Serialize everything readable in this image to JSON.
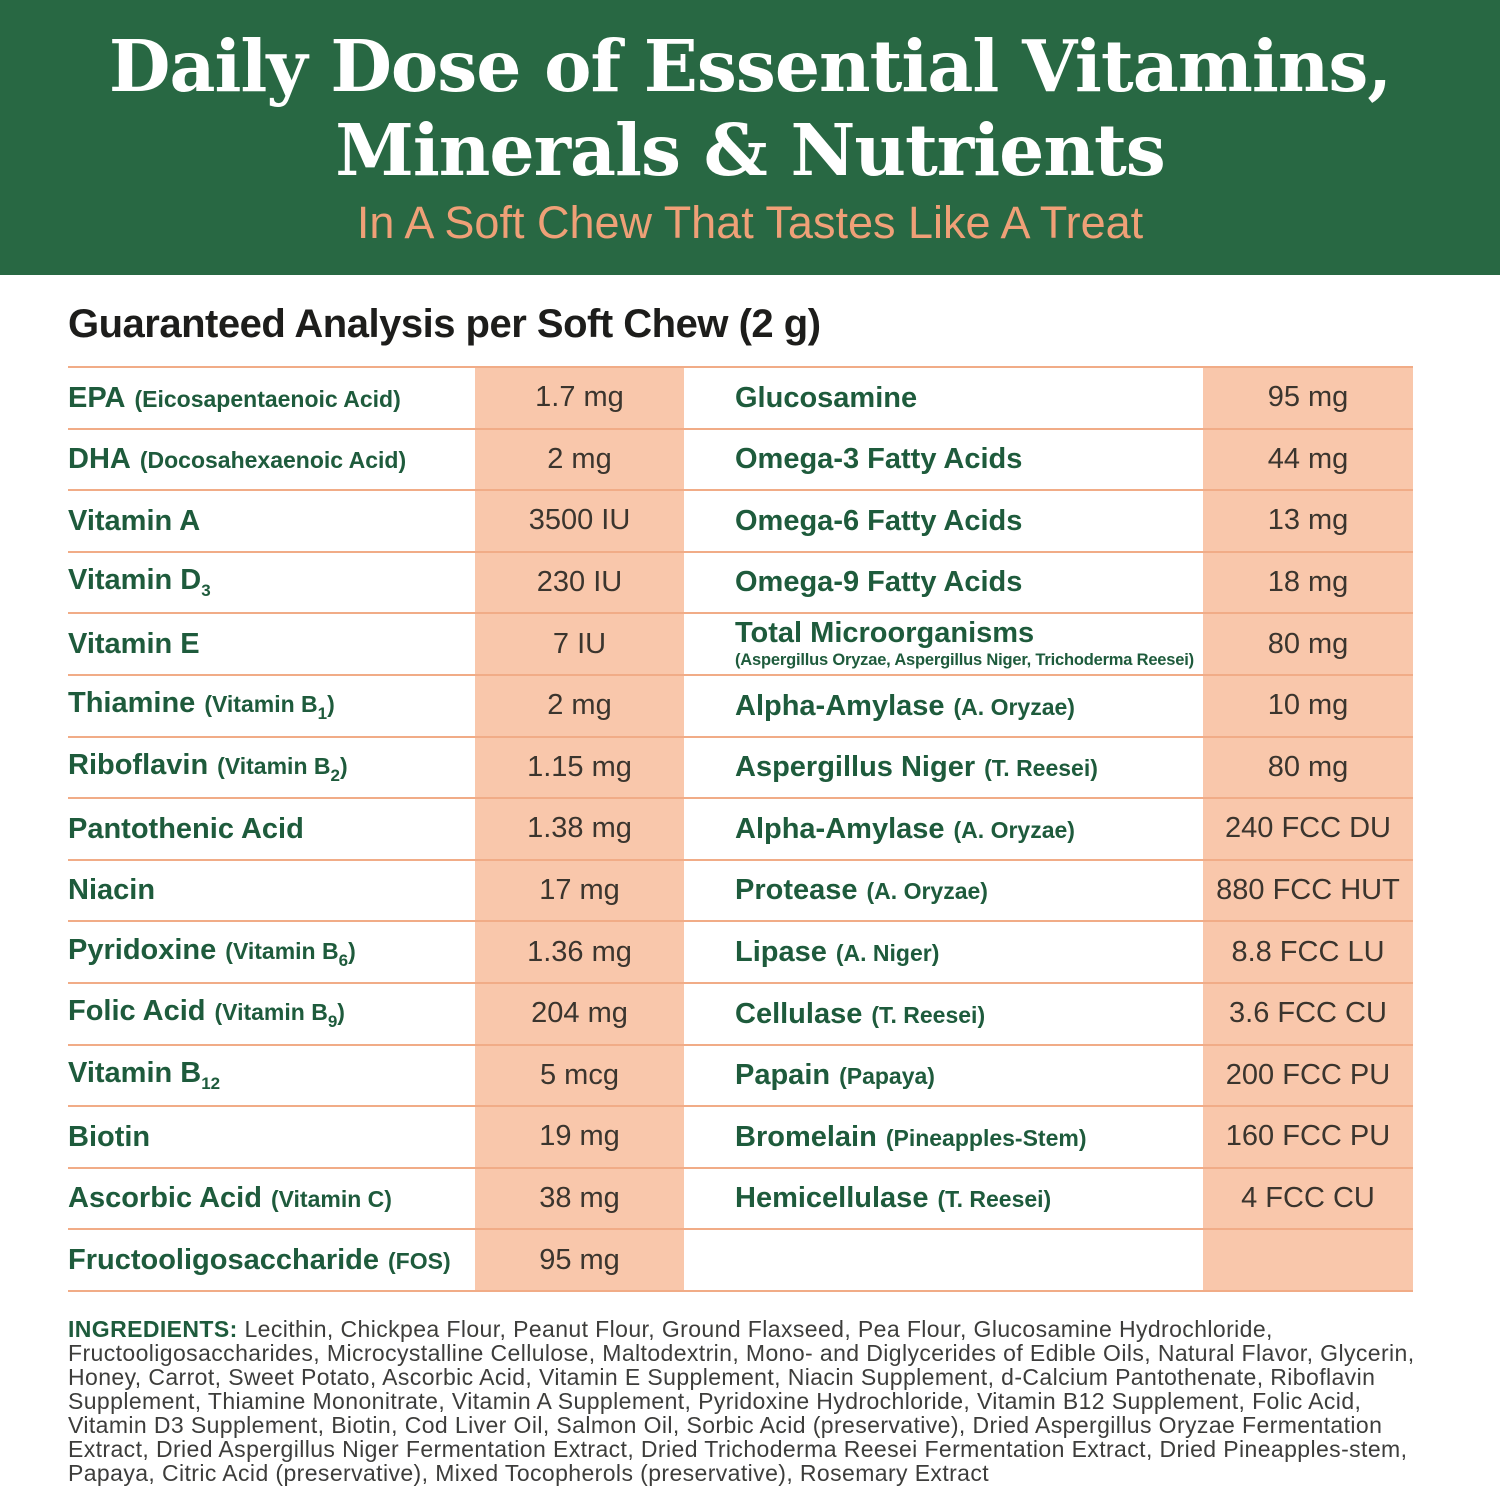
{
  "banner": {
    "title_line1": "Daily Dose of Essential Vitamins,",
    "title_line2": "Minerals & Nutrients",
    "subtitle": "In A Soft Chew That Tastes Like A Treat"
  },
  "analysis": {
    "heading": "Guaranteed Analysis per Soft Chew (2 g)",
    "left_rows": [
      {
        "name": "EPA",
        "paren": "(Eicosapentaenoic Acid)",
        "value": "1.7 mg"
      },
      {
        "name": "DHA",
        "paren": "(Docosahexaenoic Acid)",
        "value": "2 mg"
      },
      {
        "name": "Vitamin A",
        "value": "3500 IU"
      },
      {
        "name": "Vitamin D",
        "name_sub": "3",
        "value": "230 IU"
      },
      {
        "name": "Vitamin E",
        "value": "7 IU"
      },
      {
        "name": "Thiamine",
        "paren": "(Vitamin B",
        "paren_sub": "1",
        "paren_close": ")",
        "value": "2 mg"
      },
      {
        "name": "Riboflavin",
        "paren": "(Vitamin B",
        "paren_sub": "2",
        "paren_close": ")",
        "value": "1.15 mg"
      },
      {
        "name": "Pantothenic Acid",
        "value": "1.38 mg"
      },
      {
        "name": "Niacin",
        "value": "17 mg"
      },
      {
        "name": "Pyridoxine",
        "paren": "(Vitamin B",
        "paren_sub": "6",
        "paren_close": ")",
        "value": "1.36 mg"
      },
      {
        "name": "Folic Acid",
        "paren": "(Vitamin B",
        "paren_sub": "9",
        "paren_close": ")",
        "value": "204 mg"
      },
      {
        "name": "Vitamin B",
        "name_sub": "12",
        "value": "5 mcg"
      },
      {
        "name": "Biotin",
        "value": "19 mg"
      },
      {
        "name": "Ascorbic Acid",
        "paren": "(Vitamin C)",
        "value": "38 mg"
      },
      {
        "name": "Fructooligosaccharide",
        "paren": "(FOS)",
        "value": "95 mg"
      }
    ],
    "right_rows": [
      {
        "name": "Glucosamine",
        "value": "95 mg"
      },
      {
        "name": "Omega-3 Fatty Acids",
        "value": "44 mg"
      },
      {
        "name": "Omega-6 Fatty Acids",
        "value": "13 mg"
      },
      {
        "name": "Omega-9 Fatty Acids",
        "value": "18 mg"
      },
      {
        "name": "Total Microorganisms",
        "subtext": "(Aspergillus Oryzae, Aspergillus Niger, Trichoderma Reesei)",
        "value": "80 mg"
      },
      {
        "name": "Alpha-Amylase",
        "paren": "(A. Oryzae)",
        "value": "10 mg"
      },
      {
        "name": "Aspergillus Niger",
        "paren": "(T. Reesei)",
        "value": "80 mg"
      },
      {
        "name": "Alpha-Amylase",
        "paren": "(A. Oryzae)",
        "value": "240 FCC DU"
      },
      {
        "name": "Protease",
        "paren": "(A. Oryzae)",
        "value": "880 FCC HUT"
      },
      {
        "name": "Lipase",
        "paren": "(A. Niger)",
        "value": "8.8 FCC LU"
      },
      {
        "name": "Cellulase",
        "paren": "(T. Reesei)",
        "value": "3.6 FCC CU"
      },
      {
        "name": "Papain",
        "paren": "(Papaya)",
        "value": "200 FCC PU"
      },
      {
        "name": "Bromelain",
        "paren": "(Pineapples-Stem)",
        "value": "160 FCC PU"
      },
      {
        "name": "Hemicellulase",
        "paren": "(T. Reesei)",
        "value": "4 FCC CU"
      },
      {
        "name": "",
        "value": ""
      }
    ]
  },
  "ingredients": {
    "label": "INGREDIENTS:",
    "text": " Lecithin, Chickpea Flour, Peanut Flour, Ground Flaxseed, Pea Flour, Glucosamine Hydrochloride, Fructooligosaccharides, Microcystalline Cellulose, Maltodextrin, Mono- and Diglycerides of Edible Oils, Natural Flavor, Glycerin, Honey, Carrot, Sweet Potato, Ascorbic Acid, Vitamin E Supplement, Niacin Supplement, d-Calcium Pantothenate, Riboflavin Supplement, Thiamine Mononitrate, Vitamin A Supplement, Pyridoxine Hydrochloride, Vitamin B12 Supplement, Folic Acid, Vitamin D3 Supplement, Biotin, Cod Liver Oil, Salmon Oil, Sorbic Acid (preservative), Dried Aspergillus Oryzae Fermentation Extract, Dried Aspergillus Niger Fermentation Extract, Dried Trichoderma Reesei Fermentation Extract, Dried Pineapples-stem, Papaya, Citric Acid (preservative), Mixed Tocopherols (preservative), Rosemary Extract"
  },
  "colors": {
    "banner_green": "#286843",
    "accent_orange": "#EFA077",
    "peach_band": "#F9C7AB",
    "separator": "#F1AC87",
    "name_green": "#1E5B3C",
    "value_text": "#3B352E",
    "heading_text": "#1D1D1B",
    "body_text": "#3D3D3B"
  }
}
